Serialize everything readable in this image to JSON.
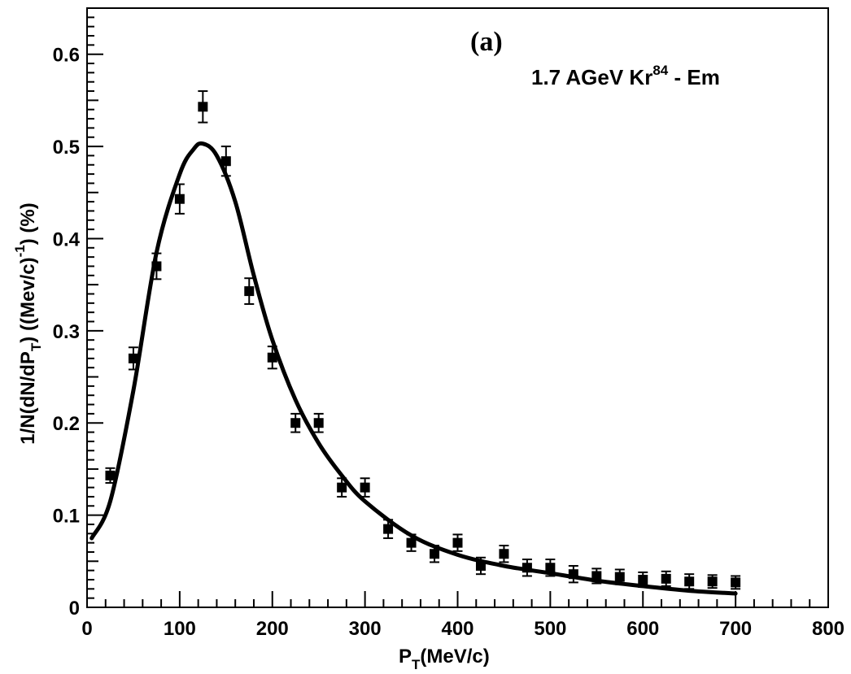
{
  "chart_data": {
    "type": "scatter",
    "panel_label": "(a)",
    "annotation": {
      "main": "1.7 AGeV Kr",
      "superscript": "84",
      "suffix": " - Em"
    },
    "xlabel": {
      "main": "P",
      "subscript": "T",
      "rest": "(MeV/c)"
    },
    "ylabel": {
      "part1": "1/N(dN/dP",
      "subscript": "T",
      "part2": ") ((Mev/c)",
      "superscript": "-1",
      "part3": ") (%)"
    },
    "xlim": [
      0,
      800
    ],
    "ylim": [
      0,
      0.65
    ],
    "x_ticks": [
      0,
      100,
      200,
      300,
      400,
      500,
      600,
      700,
      800
    ],
    "x_tick_labels": [
      "0",
      "100",
      "200",
      "300",
      "400",
      "500",
      "600",
      "700",
      "800"
    ],
    "y_ticks": [
      0,
      0.1,
      0.2,
      0.3,
      0.4,
      0.5,
      0.6
    ],
    "y_tick_labels": [
      "0",
      "0.1",
      "0.2",
      "0.3",
      "0.4",
      "0.5",
      "0.6"
    ],
    "grid": false,
    "series": [
      {
        "type": "points",
        "x": [
          25,
          50,
          75,
          100,
          125,
          150,
          175,
          200,
          225,
          250,
          275,
          300,
          325,
          350,
          375,
          400,
          425,
          450,
          475,
          500,
          525,
          550,
          575,
          600,
          625,
          650,
          675,
          700
        ],
        "y": [
          0.143,
          0.27,
          0.37,
          0.443,
          0.543,
          0.484,
          0.343,
          0.271,
          0.2,
          0.2,
          0.13,
          0.13,
          0.085,
          0.07,
          0.058,
          0.07,
          0.045,
          0.058,
          0.043,
          0.043,
          0.036,
          0.034,
          0.033,
          0.03,
          0.031,
          0.028,
          0.028,
          0.027
        ],
        "err": [
          0.008,
          0.012,
          0.014,
          0.016,
          0.017,
          0.016,
          0.014,
          0.012,
          0.01,
          0.01,
          0.01,
          0.01,
          0.01,
          0.009,
          0.009,
          0.009,
          0.009,
          0.009,
          0.009,
          0.009,
          0.009,
          0.008,
          0.008,
          0.008,
          0.008,
          0.008,
          0.007,
          0.007
        ]
      },
      {
        "type": "line",
        "x": [
          5,
          25,
          50,
          75,
          100,
          115,
          125,
          140,
          160,
          180,
          200,
          225,
          250,
          275,
          300,
          350,
          400,
          450,
          500,
          550,
          600,
          650,
          700
        ],
        "y": [
          0.075,
          0.115,
          0.235,
          0.385,
          0.47,
          0.497,
          0.503,
          0.49,
          0.44,
          0.36,
          0.29,
          0.225,
          0.178,
          0.143,
          0.115,
          0.078,
          0.057,
          0.045,
          0.037,
          0.029,
          0.023,
          0.018,
          0.015
        ]
      }
    ]
  }
}
